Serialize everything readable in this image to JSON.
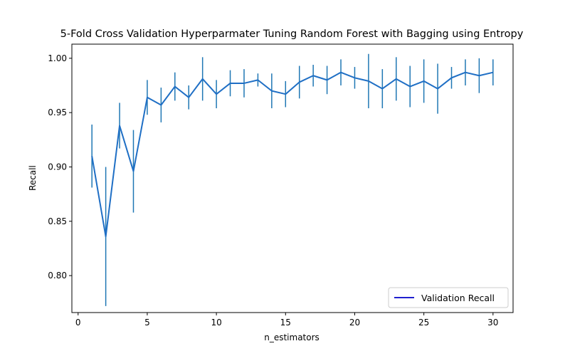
{
  "chart_data": {
    "type": "line",
    "title": "5-Fold Cross Validation Hyperparmater Tuning Random Forest with Bagging using Entropy",
    "xlabel": "n_estimators",
    "ylabel": "Recall",
    "xlim": [
      -0.45,
      31.45
    ],
    "ylim": [
      0.766,
      1.013
    ],
    "x_ticks": [
      0,
      5,
      10,
      15,
      20,
      25,
      30
    ],
    "y_ticks": [
      0.8,
      0.85,
      0.9,
      0.95,
      1.0
    ],
    "x_tick_labels": [
      "0",
      "5",
      "10",
      "15",
      "20",
      "25",
      "30"
    ],
    "y_tick_labels": [
      "0.80",
      "0.85",
      "0.90",
      "0.95",
      "1.00"
    ],
    "grid": false,
    "legend_position": "lower-right",
    "colors": {
      "line": "#1f6fc5",
      "errorbar": "#1f77b4",
      "legend_line": "#0000c8"
    },
    "series": [
      {
        "name": "Validation Recall",
        "x": [
          1,
          2,
          3,
          4,
          5,
          6,
          7,
          8,
          9,
          10,
          11,
          12,
          13,
          14,
          15,
          16,
          17,
          18,
          19,
          20,
          21,
          22,
          23,
          24,
          25,
          26,
          27,
          28,
          29,
          30
        ],
        "values": [
          0.91,
          0.836,
          0.938,
          0.896,
          0.964,
          0.957,
          0.974,
          0.964,
          0.981,
          0.967,
          0.977,
          0.977,
          0.98,
          0.97,
          0.967,
          0.978,
          0.984,
          0.98,
          0.987,
          0.982,
          0.979,
          0.972,
          0.981,
          0.974,
          0.979,
          0.972,
          0.982,
          0.987,
          0.984,
          0.987
        ],
        "error": [
          0.029,
          0.064,
          0.021,
          0.038,
          0.016,
          0.016,
          0.013,
          0.011,
          0.02,
          0.013,
          0.012,
          0.013,
          0.006,
          0.016,
          0.012,
          0.015,
          0.01,
          0.013,
          0.012,
          0.01,
          0.025,
          0.018,
          0.02,
          0.019,
          0.02,
          0.023,
          0.01,
          0.012,
          0.016,
          0.012
        ]
      }
    ]
  }
}
